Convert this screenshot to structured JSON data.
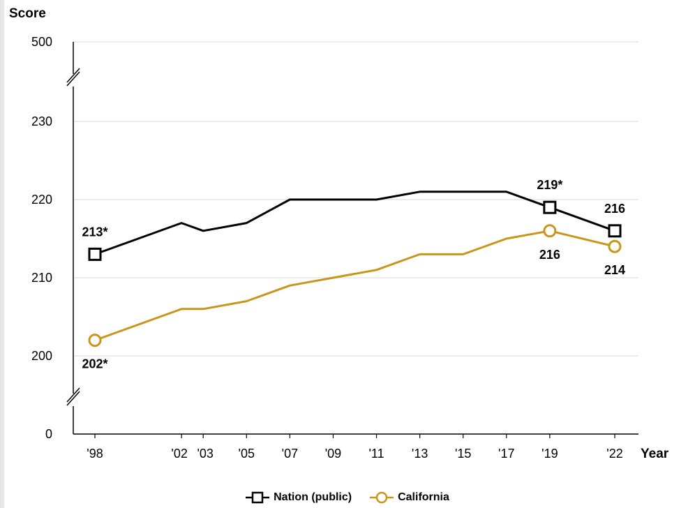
{
  "chart_data": {
    "type": "line",
    "ylabel": "Score",
    "xlabel": "Year",
    "y_axis_break": true,
    "y_ticks": [
      0,
      200,
      210,
      220,
      230,
      500
    ],
    "ylim": [
      200,
      230
    ],
    "x_ticks": [
      "'98",
      "'02",
      "'03",
      "'05",
      "'07",
      "'09",
      "'11",
      "'13",
      "'15",
      "'17",
      "'19",
      "'22"
    ],
    "x": [
      1998,
      2002,
      2003,
      2005,
      2007,
      2009,
      2011,
      2013,
      2015,
      2017,
      2019,
      2022
    ],
    "grid": true,
    "legend_position": "bottom",
    "series": [
      {
        "name": "Nation (public)",
        "color": "#000000",
        "marker": "square",
        "values": [
          213,
          217,
          216,
          217,
          220,
          220,
          220,
          221,
          221,
          221,
          219,
          216
        ],
        "labels": [
          {
            "x": 1998,
            "text": "213*",
            "pos": "above"
          },
          {
            "x": 2019,
            "text": "219*",
            "pos": "above"
          },
          {
            "x": 2022,
            "text": "216",
            "pos": "above"
          }
        ]
      },
      {
        "name": "California",
        "color": "#c9961a",
        "marker": "circle",
        "values": [
          202,
          206,
          206,
          207,
          209,
          210,
          211,
          213,
          213,
          215,
          216,
          214
        ],
        "labels": [
          {
            "x": 1998,
            "text": "202*",
            "pos": "below"
          },
          {
            "x": 2019,
            "text": "216",
            "pos": "below"
          },
          {
            "x": 2022,
            "text": "214",
            "pos": "below"
          }
        ]
      }
    ]
  }
}
